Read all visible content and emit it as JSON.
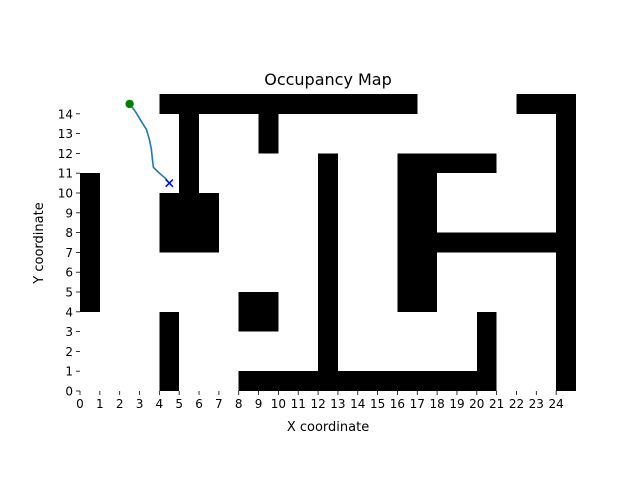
{
  "chart_data": {
    "type": "heatmap",
    "title": "Occupancy Map",
    "xlabel": "X coordinate",
    "ylabel": "Y coordinate",
    "xlim": [
      0,
      25
    ],
    "ylim": [
      0,
      15
    ],
    "x_ticks": [
      0,
      1,
      2,
      3,
      4,
      5,
      6,
      7,
      8,
      9,
      10,
      11,
      12,
      13,
      14,
      15,
      16,
      17,
      18,
      19,
      20,
      21,
      22,
      23,
      24
    ],
    "y_ticks": [
      0,
      1,
      2,
      3,
      4,
      5,
      6,
      7,
      8,
      9,
      10,
      11,
      12,
      13,
      14
    ],
    "grid": false,
    "colors": {
      "occupied": "#000000",
      "free": "#ffffff",
      "path": "#1f77b4",
      "start": "#008000",
      "goal": "#0000ff"
    },
    "obstacles": [
      {
        "x0": 0,
        "x1": 1,
        "y0": 4,
        "y1": 11
      },
      {
        "x0": 4,
        "x1": 5,
        "y0": 0,
        "y1": 4
      },
      {
        "x0": 4,
        "x1": 7,
        "y0": 7,
        "y1": 10
      },
      {
        "x0": 5,
        "x1": 6,
        "y0": 10,
        "y1": 14
      },
      {
        "x0": 4,
        "x1": 17,
        "y0": 14,
        "y1": 15
      },
      {
        "x0": 9,
        "x1": 10,
        "y0": 12,
        "y1": 14
      },
      {
        "x0": 8,
        "x1": 10,
        "y0": 3,
        "y1": 5
      },
      {
        "x0": 8,
        "x1": 21,
        "y0": 0,
        "y1": 1
      },
      {
        "x0": 12,
        "x1": 13,
        "y0": 1,
        "y1": 12
      },
      {
        "x0": 16,
        "x1": 18,
        "y0": 4,
        "y1": 12
      },
      {
        "x0": 18,
        "x1": 21,
        "y0": 11,
        "y1": 12
      },
      {
        "x0": 18,
        "x1": 25,
        "y0": 7,
        "y1": 8
      },
      {
        "x0": 20,
        "x1": 21,
        "y0": 1,
        "y1": 4
      },
      {
        "x0": 22,
        "x1": 25,
        "y0": 14,
        "y1": 15
      },
      {
        "x0": 24,
        "x1": 25,
        "y0": 0,
        "y1": 14
      }
    ],
    "path": [
      [
        2.5,
        14.5
      ],
      [
        2.8,
        14.1
      ],
      [
        3.1,
        13.6
      ],
      [
        3.35,
        13.2
      ],
      [
        3.5,
        12.7
      ],
      [
        3.6,
        12.2
      ],
      [
        3.65,
        11.7
      ],
      [
        3.7,
        11.3
      ],
      [
        4.0,
        11.0
      ],
      [
        4.3,
        10.75
      ],
      [
        4.5,
        10.5
      ]
    ],
    "start": [
      2.5,
      14.5
    ],
    "goal": [
      4.5,
      10.5
    ]
  }
}
